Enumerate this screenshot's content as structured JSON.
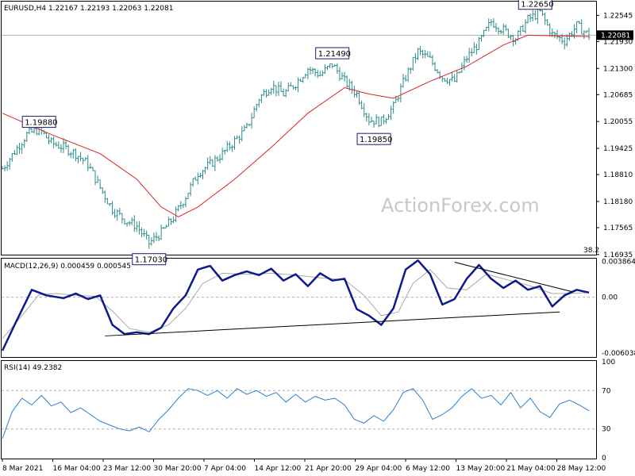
{
  "colors": {
    "bars": "#2e8b8b",
    "ma": "#e02020",
    "macd": "#0c1a8c",
    "signal": "#aaaaaa",
    "rsi": "#2a7fd4",
    "grid": "#b0b0b0"
  },
  "watermark": "ActionForex.com",
  "chart_data": [
    {
      "type": "ohlc",
      "header": "EURUSD,H4  1.22167 1.22193 1.22063 1.22081",
      "current_price_label": "1.22081",
      "fib_label": "38.2",
      "ylim": [
        1.1695,
        1.2285
      ],
      "y_ticks": [
        "1.22545",
        "1.21930",
        "1.21300",
        "1.20685",
        "1.20055",
        "1.19425",
        "1.18810",
        "1.18180",
        "1.17565",
        "1.16935"
      ],
      "x_ticks": [
        "8 Mar 2021",
        "16 Mar 04:00",
        "23 Mar 12:00",
        "30 Mar 20:00",
        "7 Apr 04:00",
        "14 Apr 12:00",
        "21 Apr 20:00",
        "29 Apr 04:00",
        "6 May 12:00",
        "13 May 20:00",
        "21 May 04:00",
        "28 May 12:00"
      ],
      "price_path": [
        [
          0,
          1.1895
        ],
        [
          5,
          1.1935
        ],
        [
          10,
          1.1975
        ],
        [
          15,
          1.1988
        ],
        [
          20,
          1.1955
        ],
        [
          25,
          1.1945
        ],
        [
          30,
          1.193
        ],
        [
          35,
          1.1905
        ],
        [
          40,
          1.185
        ],
        [
          45,
          1.18
        ],
        [
          50,
          1.1775
        ],
        [
          55,
          1.176
        ],
        [
          60,
          1.172
        ],
        [
          65,
          1.1745
        ],
        [
          70,
          1.178
        ],
        [
          75,
          1.183
        ],
        [
          80,
          1.1885
        ],
        [
          85,
          1.1905
        ],
        [
          90,
          1.193
        ],
        [
          95,
          1.196
        ],
        [
          100,
          1.199
        ],
        [
          105,
          1.206
        ],
        [
          110,
          1.209
        ],
        [
          115,
          1.207
        ],
        [
          120,
          1.2095
        ],
        [
          125,
          1.213
        ],
        [
          130,
          1.2115
        ],
        [
          135,
          1.214
        ],
        [
          140,
          1.21
        ],
        [
          145,
          1.207
        ],
        [
          150,
          1.201
        ],
        [
          155,
          1.2005
        ],
        [
          160,
          1.204
        ],
        [
          165,
          1.211
        ],
        [
          170,
          1.217
        ],
        [
          175,
          1.215
        ],
        [
          180,
          1.211
        ],
        [
          185,
          1.21
        ],
        [
          190,
          1.2155
        ],
        [
          195,
          1.219
        ],
        [
          200,
          1.224
        ],
        [
          205,
          1.222
        ],
        [
          210,
          1.22
        ],
        [
          215,
          1.2245
        ],
        [
          220,
          1.2262
        ],
        [
          225,
          1.221
        ],
        [
          230,
          1.2195
        ],
        [
          235,
          1.223
        ],
        [
          240,
          1.2208
        ]
      ],
      "ma_path": [
        [
          0,
          1.2025
        ],
        [
          20,
          1.1975
        ],
        [
          40,
          1.193
        ],
        [
          55,
          1.187
        ],
        [
          65,
          1.1805
        ],
        [
          72,
          1.1782
        ],
        [
          80,
          1.1805
        ],
        [
          95,
          1.187
        ],
        [
          110,
          1.1945
        ],
        [
          125,
          1.2025
        ],
        [
          140,
          1.2085
        ],
        [
          150,
          1.207
        ],
        [
          160,
          1.206
        ],
        [
          175,
          1.21
        ],
        [
          190,
          1.2135
        ],
        [
          205,
          1.2185
        ],
        [
          215,
          1.2208
        ],
        [
          240,
          1.2205
        ]
      ],
      "annotations": [
        {
          "text": "1.19880",
          "x": 15,
          "y": 1.1988
        },
        {
          "text": "1.17030",
          "x": 60,
          "y": 1.1703
        },
        {
          "text": "1.21490",
          "x": 135,
          "y": 1.2149
        },
        {
          "text": "1.19850",
          "x": 152,
          "y": 1.1985
        },
        {
          "text": "1.22650",
          "x": 218,
          "y": 1.2265
        }
      ]
    },
    {
      "type": "line",
      "header": "MACD(12,26,9) 0.000459 0.000545",
      "ylim": [
        -0.0064,
        0.0041
      ],
      "y_ticks": [
        {
          "label": "0.003864",
          "value": 0.003864
        },
        {
          "label": "0.00",
          "value": 0
        },
        {
          "label": "-0.006038",
          "value": -0.006038
        }
      ],
      "macd": [
        [
          0,
          -0.0058
        ],
        [
          5,
          -0.003
        ],
        [
          12,
          0.0008
        ],
        [
          18,
          0.0002
        ],
        [
          25,
          -0.0001
        ],
        [
          30,
          0.0004
        ],
        [
          35,
          -0.0002
        ],
        [
          40,
          0.0002
        ],
        [
          45,
          -0.003
        ],
        [
          50,
          -0.004
        ],
        [
          55,
          -0.0038
        ],
        [
          60,
          -0.004
        ],
        [
          65,
          -0.0033
        ],
        [
          70,
          -0.0012
        ],
        [
          75,
          0.0002
        ],
        [
          80,
          0.003
        ],
        [
          85,
          0.0034
        ],
        [
          90,
          0.0018
        ],
        [
          95,
          0.0024
        ],
        [
          100,
          0.0028
        ],
        [
          105,
          0.0024
        ],
        [
          110,
          0.0031
        ],
        [
          115,
          0.0018
        ],
        [
          120,
          0.0025
        ],
        [
          125,
          0.0012
        ],
        [
          130,
          0.0026
        ],
        [
          135,
          0.0018
        ],
        [
          140,
          0.002
        ],
        [
          145,
          -0.0013
        ],
        [
          150,
          -0.002
        ],
        [
          155,
          -0.003
        ],
        [
          160,
          -0.0012
        ],
        [
          165,
          0.003
        ],
        [
          170,
          0.004
        ],
        [
          175,
          0.0025
        ],
        [
          180,
          -0.0008
        ],
        [
          185,
          -0.0002
        ],
        [
          190,
          0.002
        ],
        [
          195,
          0.0035
        ],
        [
          200,
          0.002
        ],
        [
          205,
          0.001
        ],
        [
          210,
          0.0018
        ],
        [
          215,
          0.0008
        ],
        [
          220,
          0.0012
        ],
        [
          225,
          -0.001
        ],
        [
          230,
          0.0002
        ],
        [
          235,
          0.0008
        ],
        [
          240,
          0.0005
        ]
      ],
      "signal": [
        [
          0,
          -0.0045
        ],
        [
          8,
          -0.002
        ],
        [
          15,
          0.0003
        ],
        [
          22,
          0.0004
        ],
        [
          30,
          0.0002
        ],
        [
          38,
          0.0001
        ],
        [
          45,
          -0.0015
        ],
        [
          52,
          -0.0034
        ],
        [
          60,
          -0.0038
        ],
        [
          68,
          -0.003
        ],
        [
          75,
          -0.0012
        ],
        [
          82,
          0.0015
        ],
        [
          90,
          0.0026
        ],
        [
          100,
          0.0025
        ],
        [
          110,
          0.0026
        ],
        [
          120,
          0.0024
        ],
        [
          130,
          0.0021
        ],
        [
          140,
          0.0019
        ],
        [
          148,
          0.0002
        ],
        [
          155,
          -0.002
        ],
        [
          162,
          -0.0016
        ],
        [
          168,
          0.0015
        ],
        [
          175,
          0.003
        ],
        [
          182,
          0.001
        ],
        [
          190,
          0.0008
        ],
        [
          198,
          0.0025
        ],
        [
          205,
          0.002
        ],
        [
          215,
          0.0013
        ],
        [
          225,
          0.0004
        ],
        [
          232,
          0.0004
        ],
        [
          240,
          0.0005
        ]
      ],
      "trendlines": [
        [
          [
            42,
            -0.0042
          ],
          [
            228,
            -0.0016
          ]
        ],
        [
          [
            185,
            0.0038
          ],
          [
            233,
            0.0006
          ]
        ]
      ]
    },
    {
      "type": "line",
      "header": "RSI(14) 49.2382",
      "ylim": [
        0,
        100
      ],
      "y_ticks": [
        {
          "label": "100",
          "value": 100
        },
        {
          "label": "70",
          "value": 70
        },
        {
          "label": "30",
          "value": 30
        },
        {
          "label": "0",
          "value": 0
        }
      ],
      "rsi": [
        [
          0,
          20
        ],
        [
          4,
          48
        ],
        [
          8,
          62
        ],
        [
          12,
          55
        ],
        [
          16,
          65
        ],
        [
          20,
          54
        ],
        [
          24,
          58
        ],
        [
          28,
          47
        ],
        [
          32,
          52
        ],
        [
          36,
          45
        ],
        [
          40,
          38
        ],
        [
          44,
          34
        ],
        [
          48,
          30
        ],
        [
          52,
          28
        ],
        [
          56,
          32
        ],
        [
          60,
          27
        ],
        [
          64,
          40
        ],
        [
          68,
          50
        ],
        [
          72,
          62
        ],
        [
          76,
          72
        ],
        [
          80,
          70
        ],
        [
          84,
          65
        ],
        [
          88,
          70
        ],
        [
          92,
          62
        ],
        [
          96,
          72
        ],
        [
          100,
          66
        ],
        [
          104,
          70
        ],
        [
          108,
          64
        ],
        [
          112,
          68
        ],
        [
          116,
          58
        ],
        [
          120,
          66
        ],
        [
          124,
          58
        ],
        [
          128,
          64
        ],
        [
          132,
          60
        ],
        [
          136,
          62
        ],
        [
          140,
          55
        ],
        [
          144,
          40
        ],
        [
          148,
          36
        ],
        [
          152,
          44
        ],
        [
          156,
          38
        ],
        [
          160,
          50
        ],
        [
          164,
          68
        ],
        [
          168,
          72
        ],
        [
          172,
          60
        ],
        [
          176,
          40
        ],
        [
          180,
          45
        ],
        [
          184,
          52
        ],
        [
          188,
          64
        ],
        [
          192,
          72
        ],
        [
          196,
          62
        ],
        [
          200,
          65
        ],
        [
          204,
          55
        ],
        [
          208,
          68
        ],
        [
          212,
          52
        ],
        [
          216,
          62
        ],
        [
          220,
          48
        ],
        [
          224,
          42
        ],
        [
          228,
          56
        ],
        [
          232,
          60
        ],
        [
          236,
          55
        ],
        [
          240,
          49
        ]
      ]
    }
  ]
}
